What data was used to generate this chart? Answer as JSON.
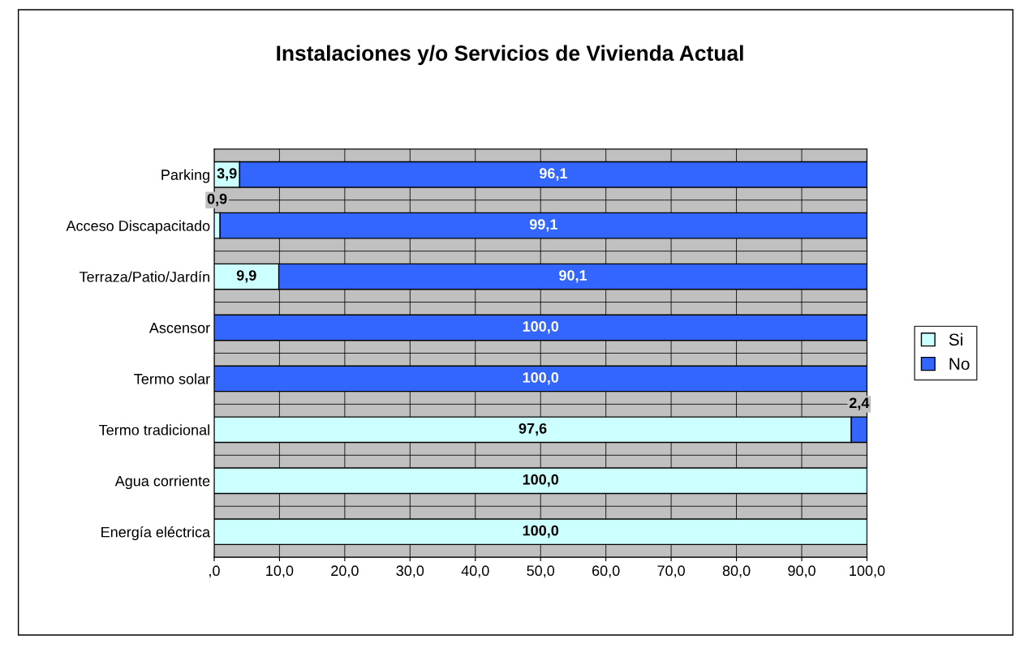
{
  "chart_data": {
    "type": "bar",
    "orientation": "horizontal",
    "stacked": true,
    "title": "Instalaciones y/o Servicios de Vivienda Actual",
    "categories": [
      "Parking",
      "Acceso Discapacitado",
      "Terraza/Patio/Jardín",
      "Ascensor",
      "Termo solar",
      "Termo tradicional",
      "Agua corriente",
      "Energía eléctrica"
    ],
    "series": [
      {
        "name": "Si",
        "color": "#ccffff",
        "values": [
          3.9,
          0.9,
          9.9,
          0,
          0,
          97.6,
          100,
          100
        ],
        "value_labels": [
          "3,9",
          "0,9",
          "9,9",
          null,
          null,
          "97,6",
          "100,0",
          "100,0"
        ]
      },
      {
        "name": "No",
        "color": "#3366ff",
        "values": [
          96.1,
          99.1,
          90.1,
          100,
          100,
          2.4,
          0,
          0
        ],
        "value_labels": [
          "96,1",
          "99,1",
          "90,1",
          "100,0",
          "100,0",
          "2,4",
          null,
          null
        ]
      }
    ],
    "xlim": [
      0,
      100
    ],
    "xticks": [
      {
        "value": 0,
        "label": ",0"
      },
      {
        "value": 10,
        "label": "10,0"
      },
      {
        "value": 20,
        "label": "20,0"
      },
      {
        "value": 30,
        "label": "30,0"
      },
      {
        "value": 40,
        "label": "40,0"
      },
      {
        "value": 50,
        "label": "50,0"
      },
      {
        "value": 60,
        "label": "60,0"
      },
      {
        "value": 70,
        "label": "70,0"
      },
      {
        "value": 80,
        "label": "80,0"
      },
      {
        "value": 90,
        "label": "90,0"
      },
      {
        "value": 100,
        "label": "100,0"
      }
    ],
    "grid": "x",
    "legend": "right"
  }
}
